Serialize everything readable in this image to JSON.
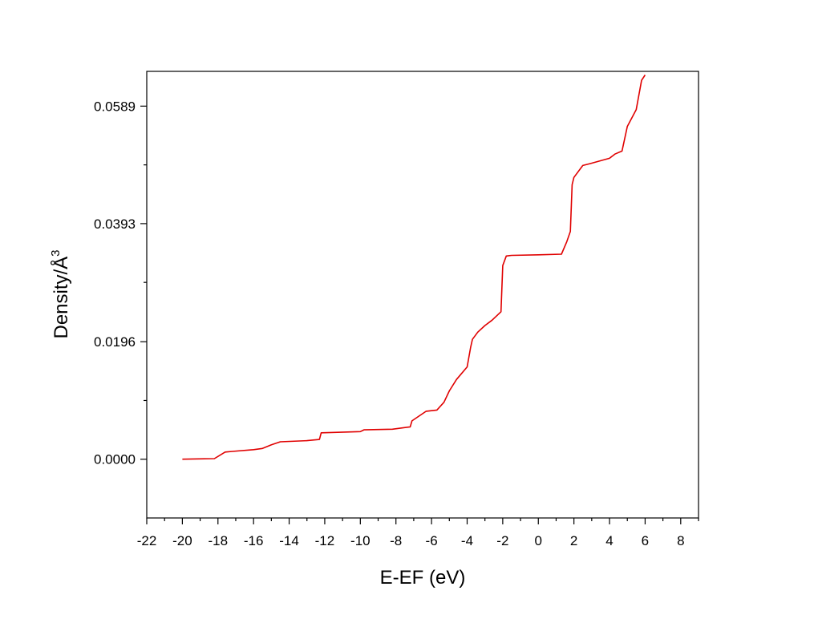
{
  "chart_data": {
    "type": "line",
    "xlabel": "E-EF (eV)",
    "ylabel": "Density/Å",
    "ylabel_sup": "3",
    "xlim": [
      -22,
      9
    ],
    "ylim": [
      -0.0098,
      0.0647
    ],
    "xticks": [
      -22,
      -20,
      -18,
      -16,
      -14,
      -12,
      -10,
      -8,
      -6,
      -4,
      -2,
      0,
      2,
      4,
      6,
      8
    ],
    "xtick_labels": [
      "-22",
      "-20",
      "-18",
      "-16",
      "-14",
      "-12",
      "-10",
      "-8",
      "-6",
      "-4",
      "-2",
      "0",
      "2",
      "4",
      "6",
      "8"
    ],
    "yticks": [
      0.0,
      0.0196,
      0.0393,
      0.0589
    ],
    "ytick_labels": [
      "0.0000",
      "0.0196",
      "0.0393",
      "0.0589"
    ],
    "yminor_ticks": [
      0.0098,
      0.0295,
      0.0491
    ],
    "grid": false,
    "series": [
      {
        "color": "#e00000",
        "x": [
          -20,
          -18.2,
          -17.6,
          -17.2,
          -16.0,
          -15.5,
          -15.0,
          -14.5,
          -13.0,
          -12.3,
          -12.2,
          -10.0,
          -9.8,
          -8.2,
          -7.2,
          -7.1,
          -6.3,
          -5.7,
          -5.3,
          -5.0,
          -4.6,
          -4.0,
          -3.8,
          -3.7,
          -3.4,
          -3.0,
          -2.6,
          -2.1,
          -2.0,
          -1.8,
          -1.5,
          0,
          1.3,
          1.6,
          1.8,
          1.9,
          2.0,
          2.5,
          2.9,
          4.0,
          4.3,
          4.7,
          5.0,
          5.5,
          5.8,
          6.0
        ],
        "y": [
          0.0,
          0.0001,
          0.0012,
          0.0013,
          0.0016,
          0.0018,
          0.0024,
          0.0029,
          0.0031,
          0.0033,
          0.0044,
          0.0046,
          0.0049,
          0.005,
          0.0054,
          0.0064,
          0.008,
          0.0082,
          0.0095,
          0.0114,
          0.0133,
          0.0154,
          0.0187,
          0.02,
          0.0212,
          0.0223,
          0.0232,
          0.0246,
          0.0323,
          0.0339,
          0.034,
          0.0341,
          0.0342,
          0.0363,
          0.038,
          0.0458,
          0.047,
          0.049,
          0.0493,
          0.0502,
          0.0509,
          0.0514,
          0.0555,
          0.0583,
          0.0632,
          0.0641
        ]
      }
    ]
  }
}
